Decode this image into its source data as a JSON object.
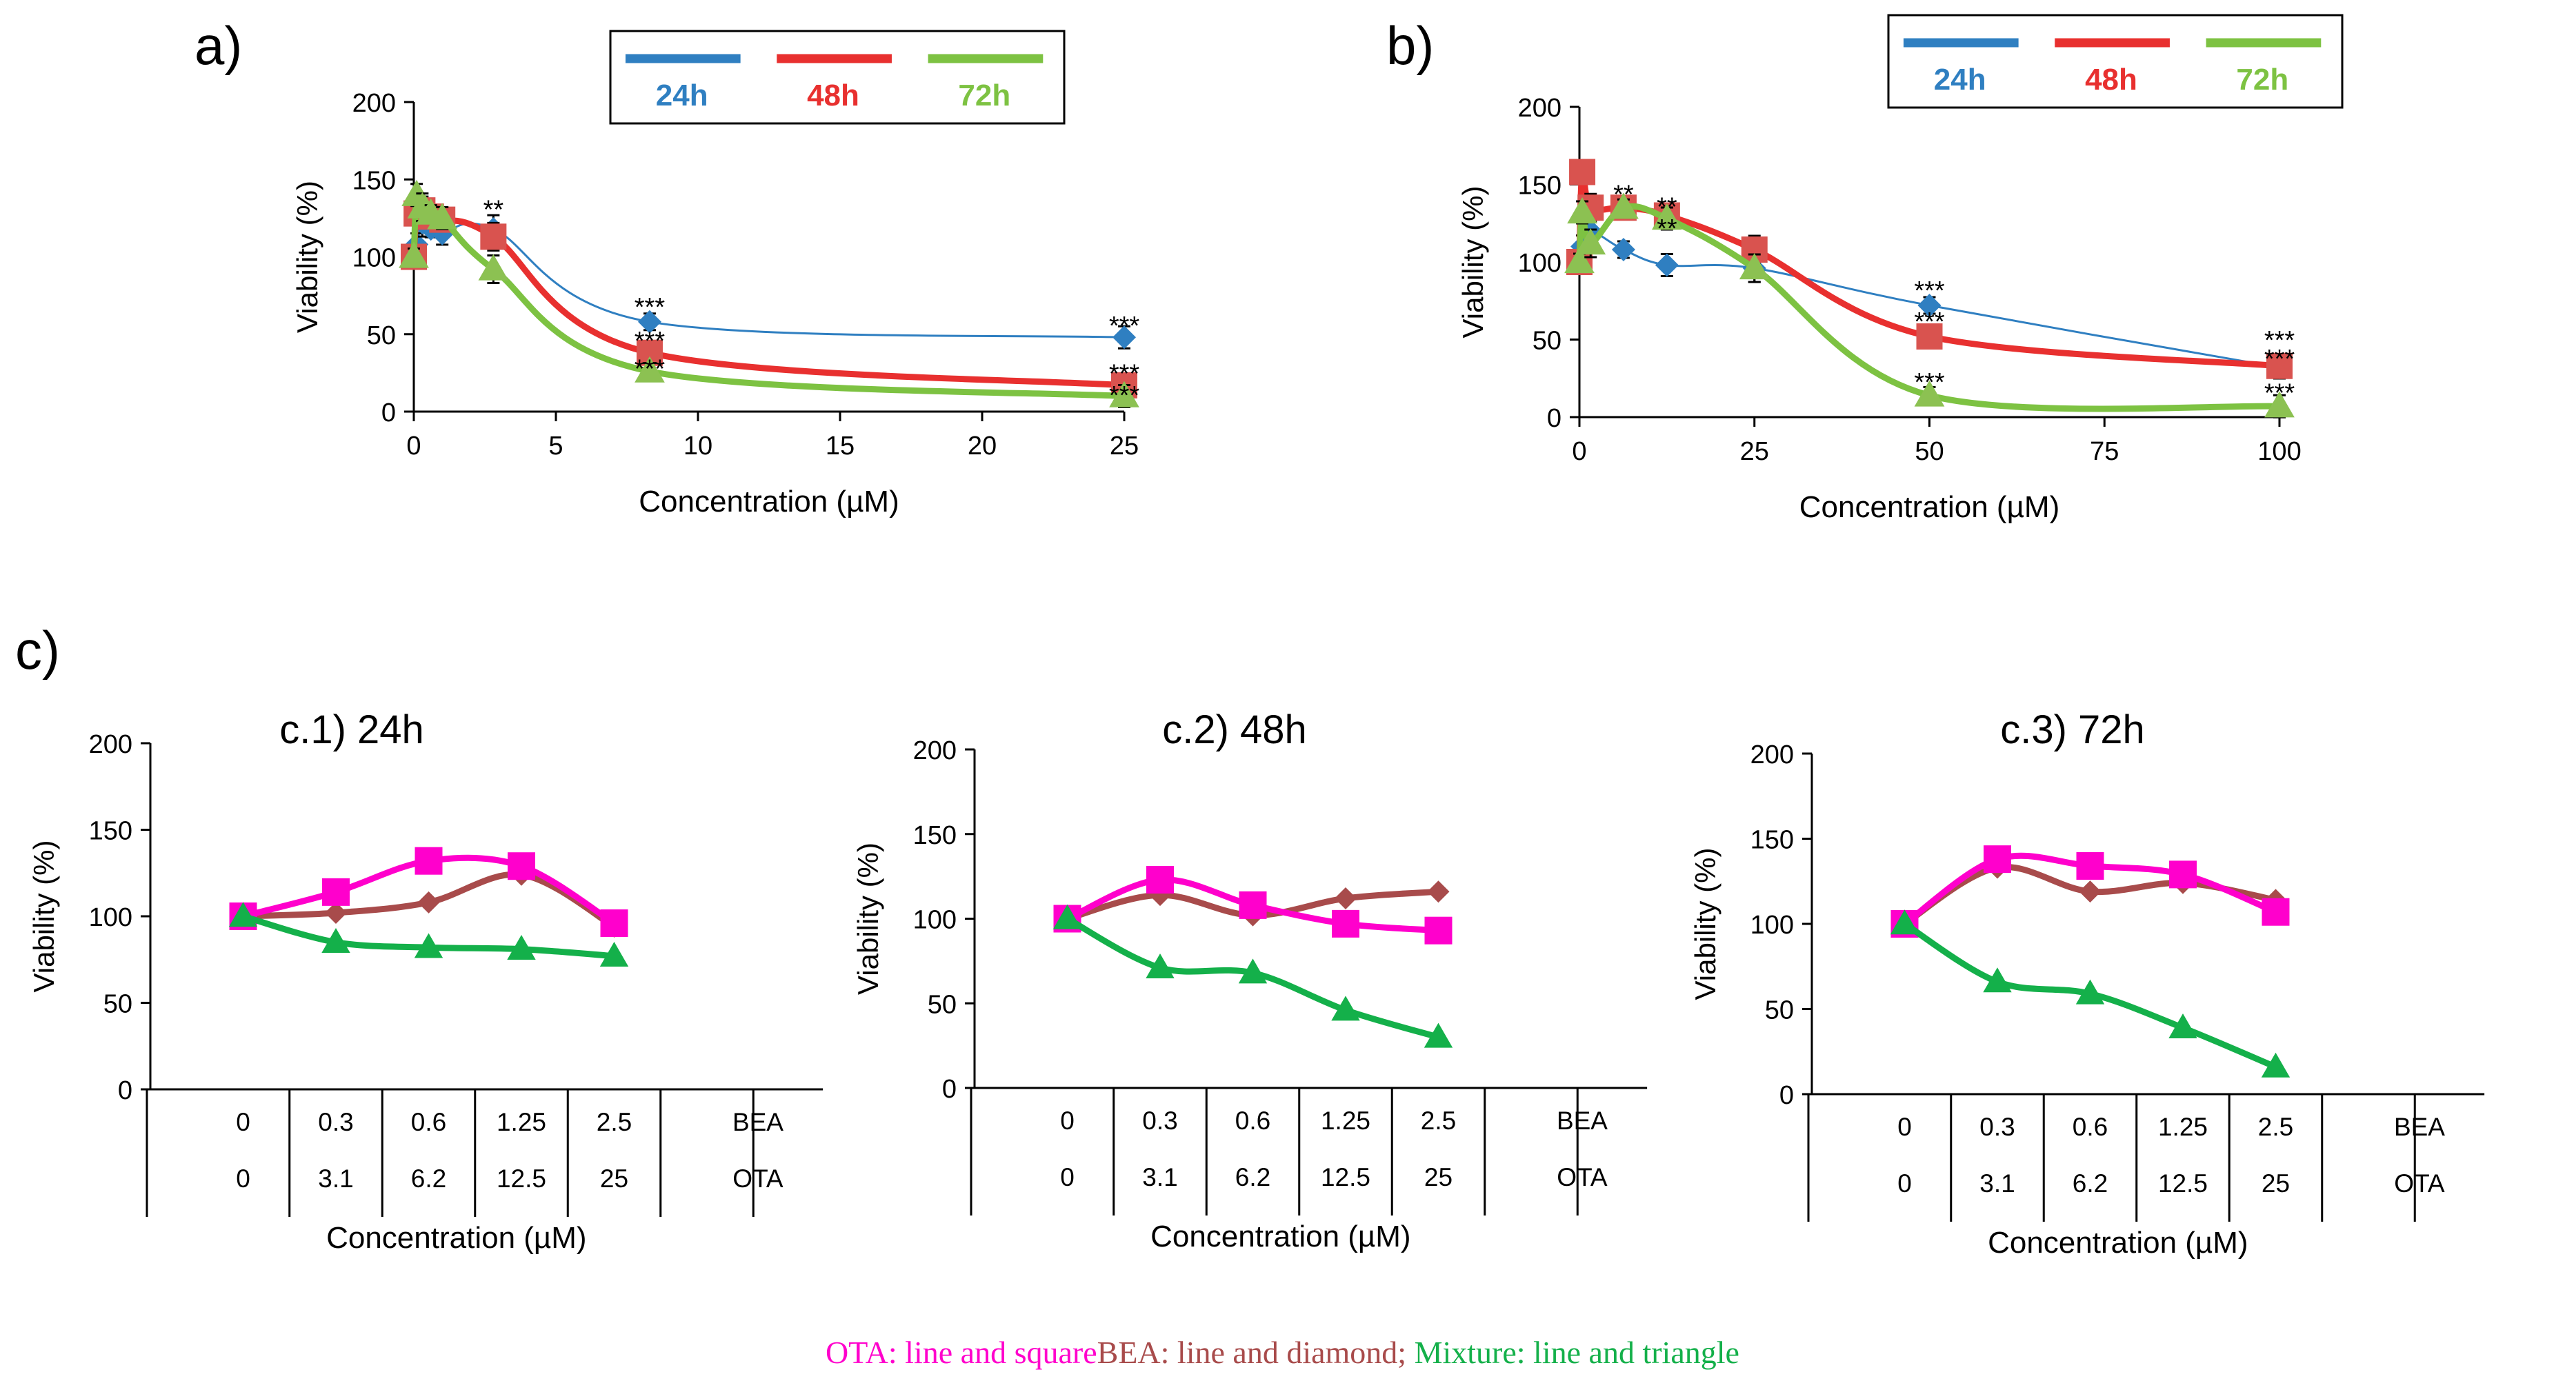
{
  "figure": {
    "panel_letters": {
      "a": "a)",
      "b": "b)",
      "c": "c)"
    },
    "footer": {
      "ota": "OTA: line and square",
      "bea": "BEA: line and diamond;",
      "mix": "Mixture: line and triangle"
    }
  },
  "colors": {
    "h24": "#2F7FC1",
    "h48": "#E8302F",
    "h72": "#7DC242",
    "ota": "#FF00CC",
    "bea": "#A84B4B",
    "mix": "#14B04A",
    "marker48": "#D9534F",
    "marker72": "#8CC152"
  },
  "chart_data": [
    {
      "id": "a",
      "type": "line",
      "xlabel": "Concentration (µM)",
      "ylabel": "Viability (%)",
      "xlim": [
        0,
        25
      ],
      "ylim": [
        0,
        200
      ],
      "xticks": [
        0,
        5,
        10,
        15,
        20,
        25
      ],
      "yticks": [
        0,
        50,
        100,
        150,
        200
      ],
      "legend": [
        "24h",
        "48h",
        "72h"
      ],
      "series": [
        {
          "name": "24h",
          "marker": "diamond",
          "x": [
            0,
            0.1,
            0.3,
            0.6,
            1,
            2.8,
            8.3,
            25
          ],
          "y": [
            100,
            108,
            122,
            118,
            115,
            118,
            58,
            48
          ]
        },
        {
          "name": "48h",
          "marker": "square",
          "x": [
            0,
            0.1,
            0.3,
            0.6,
            1,
            2.8,
            8.3,
            25
          ],
          "y": [
            100,
            128,
            130,
            126,
            124,
            113,
            38,
            17
          ]
        },
        {
          "name": "72h",
          "marker": "triangle",
          "x": [
            0,
            0.1,
            0.3,
            0.6,
            1,
            2.8,
            8.3,
            25
          ],
          "y": [
            100,
            140,
            132,
            128,
            125,
            92,
            26,
            10
          ]
        }
      ],
      "annotations": [
        {
          "text": "**",
          "x": 2.8,
          "y": 125
        },
        {
          "text": "***",
          "x": 8.3,
          "y": 62
        },
        {
          "text": "***",
          "x": 8.3,
          "y": 40
        },
        {
          "text": "***",
          "x": 8.3,
          "y": 22
        },
        {
          "text": "***",
          "x": 25,
          "y": 50
        },
        {
          "text": "***",
          "x": 25,
          "y": 19
        },
        {
          "text": "***",
          "x": 25,
          "y": 5
        }
      ]
    },
    {
      "id": "b",
      "type": "line",
      "xlabel": "Concentration (µM)",
      "ylabel": "Viability (%)",
      "xlim": [
        0,
        100
      ],
      "ylim": [
        0,
        200
      ],
      "xticks": [
        0,
        25,
        50,
        75,
        100
      ],
      "yticks": [
        0,
        50,
        100,
        150,
        200
      ],
      "legend": [
        "24h",
        "48h",
        "72h"
      ],
      "series": [
        {
          "name": "24h",
          "marker": "diamond",
          "x": [
            0,
            0.4,
            1.6,
            6.3,
            12.5,
            25,
            50,
            100
          ],
          "y": [
            100,
            110,
            120,
            108,
            98,
            96,
            72,
            32
          ]
        },
        {
          "name": "48h",
          "marker": "square",
          "x": [
            0,
            0.4,
            1.6,
            6.3,
            12.5,
            25,
            50,
            100
          ],
          "y": [
            100,
            158,
            135,
            135,
            130,
            108,
            52,
            33
          ]
        },
        {
          "name": "72h",
          "marker": "triangle",
          "x": [
            0,
            0.4,
            1.6,
            6.3,
            12.5,
            25,
            50,
            100
          ],
          "y": [
            100,
            132,
            112,
            135,
            128,
            96,
            14,
            7
          ]
        }
      ],
      "annotations": [
        {
          "text": "**",
          "x": 6.3,
          "y": 138
        },
        {
          "text": "**",
          "x": 12.5,
          "y": 130
        },
        {
          "text": "**",
          "x": 12.5,
          "y": 116
        },
        {
          "text": "***",
          "x": 50,
          "y": 76
        },
        {
          "text": "***",
          "x": 50,
          "y": 56
        },
        {
          "text": "***",
          "x": 50,
          "y": 17
        },
        {
          "text": "***",
          "x": 100,
          "y": 44
        },
        {
          "text": "***",
          "x": 100,
          "y": 32
        },
        {
          "text": "***",
          "x": 100,
          "y": 10
        }
      ]
    },
    {
      "id": "c1",
      "type": "line",
      "title": "c.1) 24h",
      "xlabel": "Concentration (µM)",
      "ylabel": "Viability (%)",
      "ylim": [
        0,
        200
      ],
      "yticks": [
        0,
        50,
        100,
        150,
        200
      ],
      "row1": [
        "0",
        "0.3",
        "0.6",
        "1.25",
        "2.5",
        "BEA"
      ],
      "row2": [
        "0",
        "3.1",
        "6.2",
        "12.5",
        "25",
        "OTA"
      ],
      "series": [
        {
          "name": "OTA",
          "marker": "square",
          "values": [
            100,
            114,
            132,
            129,
            96
          ]
        },
        {
          "name": "BEA",
          "marker": "diamond",
          "values": [
            100,
            102,
            108,
            124,
            94
          ]
        },
        {
          "name": "Mixture",
          "marker": "triangle",
          "values": [
            100,
            85,
            82,
            81,
            77
          ]
        }
      ]
    },
    {
      "id": "c2",
      "type": "line",
      "title": "c.2) 48h",
      "xlabel": "Concentration (µM)",
      "ylabel": "Viability (%)",
      "ylim": [
        0,
        200
      ],
      "yticks": [
        0,
        50,
        100,
        150,
        200
      ],
      "row1": [
        "0",
        "0.3",
        "0.6",
        "1.25",
        "2.5",
        "BEA"
      ],
      "row2": [
        "0",
        "3.1",
        "6.2",
        "12.5",
        "25",
        "OTA"
      ],
      "series": [
        {
          "name": "OTA",
          "marker": "square",
          "values": [
            100,
            123,
            108,
            97,
            93
          ]
        },
        {
          "name": "BEA",
          "marker": "diamond",
          "values": [
            100,
            114,
            102,
            112,
            116
          ]
        },
        {
          "name": "Mixture",
          "marker": "triangle",
          "values": [
            100,
            71,
            68,
            46,
            30
          ]
        }
      ]
    },
    {
      "id": "c3",
      "type": "line",
      "title": "c.3) 72h",
      "xlabel": "Concentration (µM)",
      "ylabel": "Viability (%)",
      "ylim": [
        0,
        200
      ],
      "yticks": [
        0,
        50,
        100,
        150,
        200
      ],
      "row1": [
        "0",
        "0.3",
        "0.6",
        "1.25",
        "2.5",
        "BEA"
      ],
      "row2": [
        "0",
        "3.1",
        "6.2",
        "12.5",
        "25",
        "OTA"
      ],
      "series": [
        {
          "name": "OTA",
          "marker": "square",
          "values": [
            100,
            138,
            134,
            129,
            107
          ]
        },
        {
          "name": "BEA",
          "marker": "diamond",
          "values": [
            100,
            133,
            119,
            124,
            114
          ]
        },
        {
          "name": "Mixture",
          "marker": "triangle",
          "values": [
            100,
            66,
            59,
            39,
            16
          ]
        }
      ]
    }
  ]
}
